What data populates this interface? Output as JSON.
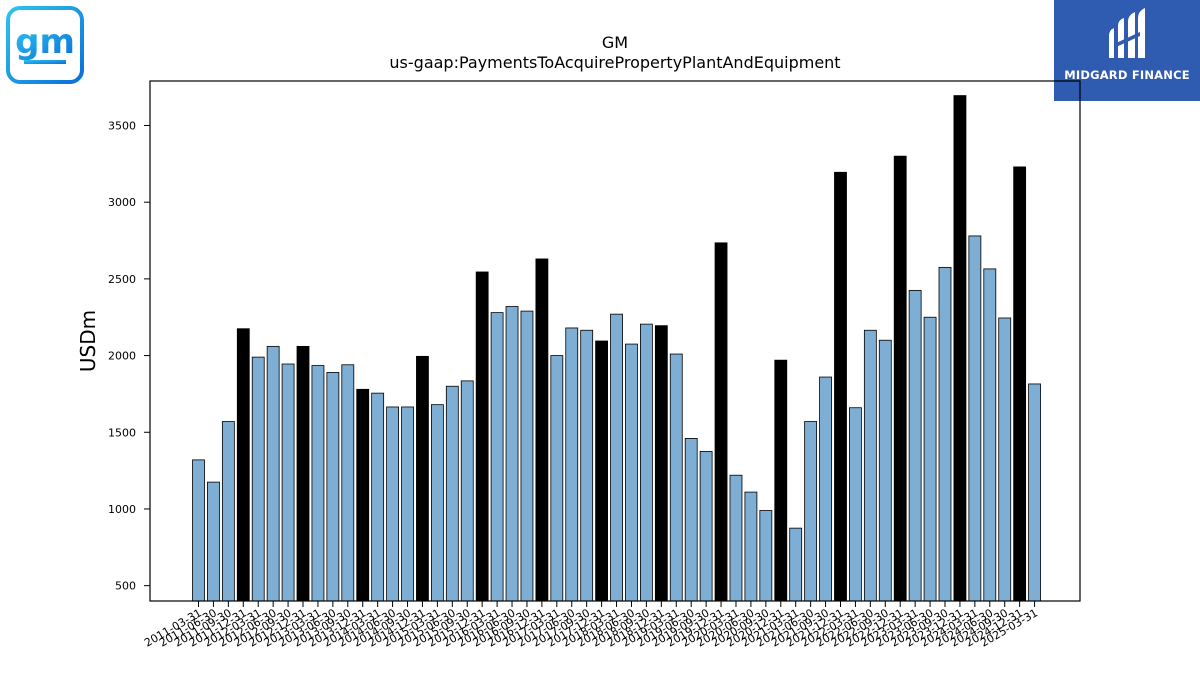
{
  "branding": {
    "company_logo_text": "gm",
    "brand_name": "MIDGARD FINANCE"
  },
  "chart_data": {
    "type": "bar",
    "title": "GM",
    "subtitle": "us-gaap:PaymentsToAcquirePropertyPlantAndEquipment",
    "xlabel": "",
    "ylabel": "USDm",
    "ylim": [
      400,
      3790
    ],
    "yticks": [
      500,
      1000,
      1500,
      2000,
      2500,
      3000,
      3500
    ],
    "grid": false,
    "colors": {
      "quarter": "#7eaed3",
      "annual": "#000000",
      "edge": "#000000"
    },
    "categories": [
      "2011-03-31",
      "2011-06-30",
      "2011-09-30",
      "2011-12-31",
      "2012-03-31",
      "2012-06-30",
      "2012-09-30",
      "2012-12-31",
      "2013-03-31",
      "2013-06-30",
      "2013-09-30",
      "2013-12-31",
      "2014-03-31",
      "2014-06-30",
      "2014-09-30",
      "2014-12-31",
      "2015-03-31",
      "2015-06-30",
      "2015-09-30",
      "2015-12-31",
      "2016-03-31",
      "2016-06-30",
      "2016-09-30",
      "2016-12-31",
      "2017-03-31",
      "2017-06-30",
      "2017-09-30",
      "2017-12-31",
      "2018-03-31",
      "2018-06-30",
      "2018-09-30",
      "2018-12-31",
      "2019-03-31",
      "2019-06-30",
      "2019-09-30",
      "2019-12-31",
      "2020-03-31",
      "2020-06-30",
      "2020-09-30",
      "2020-12-31",
      "2021-03-31",
      "2021-06-30",
      "2021-09-30",
      "2021-12-31",
      "2022-03-31",
      "2022-06-30",
      "2022-09-30",
      "2022-12-31",
      "2023-03-31",
      "2023-06-30",
      "2023-09-30",
      "2023-12-31",
      "2024-03-31",
      "2024-06-30",
      "2024-09-30",
      "2024-12-31",
      "2025-03-31"
    ],
    "tick_labels": [
      "2011-03-31",
      "2011-06-30",
      "2011-09-30",
      "2011-12-31",
      "2012-03-31",
      "2012-06-30",
      "2012-09-30",
      "2012-12-31",
      "2013-03-31",
      "2013-06-30",
      "2013-09-30",
      "2013-12-31",
      "2014-03-31",
      "2014-06-30",
      "2014-09-30",
      "2014-12-31",
      "2015-03-31",
      "2015-06-30",
      "2015-09-30",
      "2015-12-31",
      "2016-03-31",
      "2016-06-30",
      "2016-09-30",
      "2016-12-31",
      "2017-03-31",
      "2017-06-30",
      "2017-09-30",
      "2017-12-31",
      "2018-03-31",
      "2018-06-30",
      "2018-09-30",
      "2018-12-31",
      "2019-03-31",
      "2019-06-30",
      "2019-09-30",
      "2019-12-31",
      "2020-03-31",
      "2020-06-30",
      "2020-09-30",
      "2020-12-31",
      "2021-03-31",
      "2021-06-30",
      "2021-09-30",
      "2021-12-31",
      "2022-03-31",
      "2022-06-30",
      "2022-09-30",
      "2022-12-31",
      "2023-03-31",
      "2023-06-30",
      "2023-09-30",
      "2023-12-31",
      "2024-03-31",
      "2024-06-30",
      "2024-09-30",
      "2024-12-31",
      "2025-03-31"
    ],
    "values": [
      1320,
      1175,
      1570,
      2175,
      1990,
      2060,
      1945,
      2060,
      1935,
      1890,
      1940,
      1780,
      1755,
      1665,
      1665,
      1995,
      1680,
      1800,
      1835,
      2545,
      2280,
      2320,
      2290,
      2630,
      2000,
      2180,
      2165,
      2095,
      2270,
      2075,
      2205,
      2195,
      2010,
      1460,
      1375,
      2735,
      1220,
      1110,
      990,
      1970,
      875,
      1570,
      1860,
      3195,
      1660,
      2165,
      2100,
      3300,
      2425,
      2250,
      2575,
      3695,
      2780,
      2565,
      2245,
      3230,
      1815
    ],
    "annual": [
      false,
      false,
      false,
      true,
      false,
      false,
      false,
      true,
      false,
      false,
      false,
      true,
      false,
      false,
      false,
      true,
      false,
      false,
      false,
      true,
      false,
      false,
      false,
      true,
      false,
      false,
      false,
      true,
      false,
      false,
      false,
      true,
      false,
      false,
      false,
      true,
      false,
      false,
      false,
      true,
      false,
      false,
      false,
      true,
      false,
      false,
      false,
      true,
      false,
      false,
      false,
      true,
      false,
      false,
      false,
      true,
      false
    ]
  }
}
